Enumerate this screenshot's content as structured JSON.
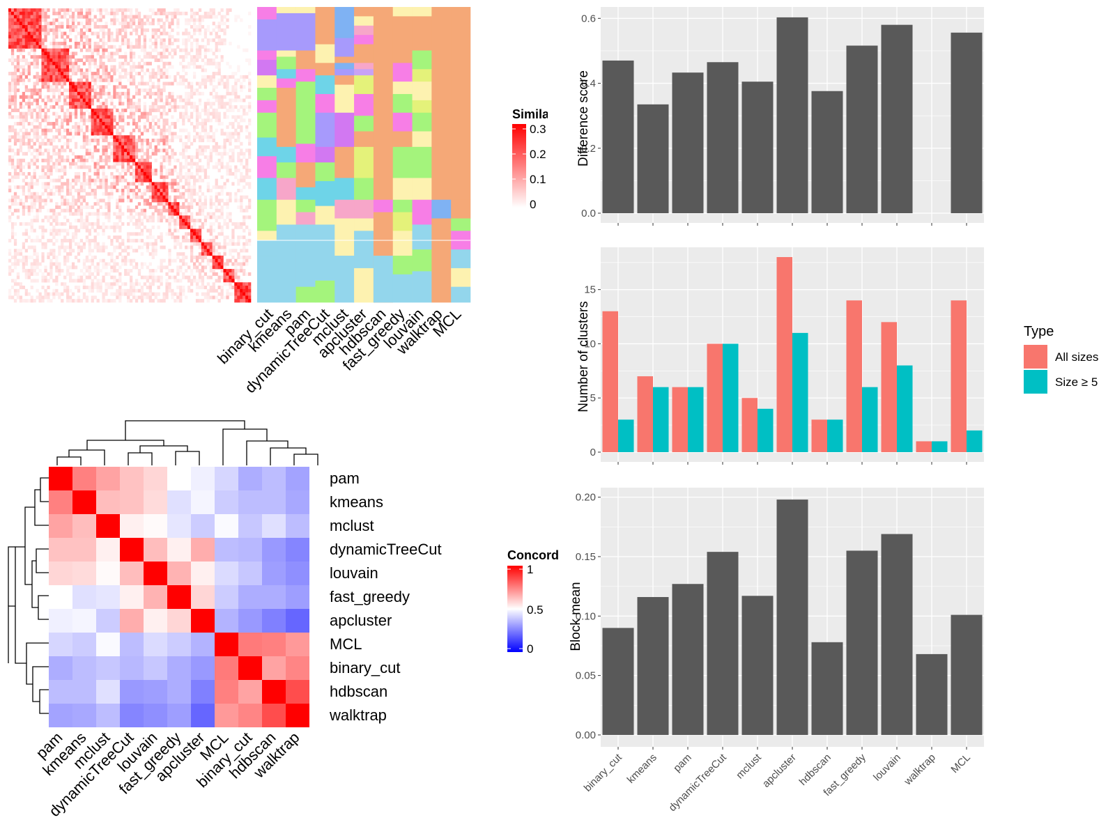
{
  "similarity_legend": {
    "title": "Simila",
    "ticks": [
      "0.3",
      "0.2",
      "0.1",
      "0"
    ],
    "colors": [
      "#ffffff",
      "#ff0000"
    ]
  },
  "concordance_legend": {
    "title": "Concord",
    "ticks": [
      "1",
      "0.5",
      "0"
    ],
    "colors": [
      "#0000ff",
      "#ffffff",
      "#ff0000"
    ]
  },
  "method_columns": {
    "labels": [
      "binary_cut",
      "kmeans",
      "pam",
      "dynamicTreeCut",
      "mclust",
      "apcluster",
      "hdbscan",
      "fast_greedy",
      "louvain",
      "walktrap",
      "MCL"
    ]
  },
  "bar_legend": {
    "title": "Type",
    "items": [
      {
        "label": "All sizes",
        "color": "#f8766d"
      },
      {
        "label": "Size ≥ 5",
        "color": "#00bfc4"
      }
    ]
  },
  "chart_data": [
    {
      "type": "heatmap",
      "name": "similarity_matrix",
      "colors": [
        "#ffffff",
        "#ff0000"
      ],
      "range": [
        0,
        0.3
      ]
    },
    {
      "type": "heatmap",
      "name": "cluster_assignments",
      "columns": [
        "binary_cut",
        "kmeans",
        "pam",
        "dynamicTreeCut",
        "mclust",
        "apcluster",
        "hdbscan",
        "fast_greedy",
        "louvain",
        "walktrap",
        "MCL"
      ]
    },
    {
      "type": "heatmap",
      "name": "concordance",
      "rows": [
        "pam",
        "kmeans",
        "mclust",
        "dynamicTreeCut",
        "louvain",
        "fast_greedy",
        "apcluster",
        "MCL",
        "binary_cut",
        "hdbscan",
        "walktrap"
      ],
      "columns": [
        "pam",
        "kmeans",
        "mclust",
        "dynamicTreeCut",
        "louvain",
        "fast_greedy",
        "apcluster",
        "MCL",
        "binary_cut",
        "hdbscan",
        "walktrap"
      ],
      "range": [
        0,
        1
      ],
      "values": [
        [
          1.0,
          0.75,
          0.68,
          0.62,
          0.58,
          0.5,
          0.47,
          0.42,
          0.34,
          0.37,
          0.32
        ],
        [
          0.75,
          1.0,
          0.63,
          0.62,
          0.57,
          0.44,
          0.48,
          0.4,
          0.37,
          0.37,
          0.33
        ],
        [
          0.68,
          0.63,
          1.0,
          0.53,
          0.51,
          0.45,
          0.4,
          0.49,
          0.39,
          0.44,
          0.37
        ],
        [
          0.62,
          0.62,
          0.53,
          1.0,
          0.63,
          0.53,
          0.66,
          0.37,
          0.36,
          0.3,
          0.26
        ],
        [
          0.58,
          0.57,
          0.51,
          0.63,
          1.0,
          0.65,
          0.53,
          0.43,
          0.39,
          0.31,
          0.28
        ],
        [
          0.5,
          0.44,
          0.45,
          0.53,
          0.65,
          1.0,
          0.58,
          0.4,
          0.34,
          0.34,
          0.31
        ],
        [
          0.47,
          0.48,
          0.4,
          0.66,
          0.53,
          0.58,
          1.0,
          0.35,
          0.3,
          0.25,
          0.2
        ],
        [
          0.42,
          0.4,
          0.49,
          0.37,
          0.43,
          0.4,
          0.35,
          1.0,
          0.76,
          0.75,
          0.7
        ],
        [
          0.34,
          0.37,
          0.39,
          0.36,
          0.39,
          0.34,
          0.3,
          0.76,
          1.0,
          0.68,
          0.74
        ],
        [
          0.37,
          0.37,
          0.44,
          0.3,
          0.31,
          0.34,
          0.25,
          0.75,
          0.68,
          1.0,
          0.85
        ],
        [
          0.32,
          0.33,
          0.37,
          0.26,
          0.28,
          0.31,
          0.2,
          0.7,
          0.74,
          0.85,
          1.0
        ]
      ]
    },
    {
      "type": "bar",
      "name": "difference_score",
      "categories": [
        "binary_cut",
        "kmeans",
        "pam",
        "dynamicTreeCut",
        "mclust",
        "apcluster",
        "hdbscan",
        "fast_greedy",
        "louvain",
        "walktrap",
        "MCL"
      ],
      "values": [
        0.47,
        0.335,
        0.433,
        0.465,
        0.405,
        0.603,
        0.376,
        0.516,
        0.58,
        null,
        0.556
      ],
      "ylabel": "Difference score",
      "yticks": [
        "0.0",
        "0.2",
        "0.4",
        "0.6"
      ],
      "ylim": [
        -0.03,
        0.635
      ],
      "color": "#595959"
    },
    {
      "type": "bar",
      "name": "number_of_clusters",
      "categories": [
        "binary_cut",
        "kmeans",
        "pam",
        "dynamicTreeCut",
        "mclust",
        "apcluster",
        "hdbscan",
        "fast_greedy",
        "louvain",
        "walktrap",
        "MCL"
      ],
      "series": [
        {
          "name": "All sizes",
          "values": [
            13,
            7,
            6,
            10,
            5,
            18,
            3,
            14,
            12,
            1,
            14
          ],
          "color": "#f8766d"
        },
        {
          "name": "Size ≥ 5",
          "values": [
            3,
            6,
            6,
            10,
            4,
            11,
            3,
            6,
            8,
            1,
            2
          ],
          "color": "#00bfc4"
        }
      ],
      "ylabel": "Number of clusters",
      "yticks": [
        "0",
        "5",
        "10",
        "15"
      ],
      "ylim": [
        -0.9,
        18.9
      ]
    },
    {
      "type": "bar",
      "name": "block_mean",
      "categories": [
        "binary_cut",
        "kmeans",
        "pam",
        "dynamicTreeCut",
        "mclust",
        "apcluster",
        "hdbscan",
        "fast_greedy",
        "louvain",
        "walktrap",
        "MCL"
      ],
      "values": [
        0.09,
        0.116,
        0.127,
        0.154,
        0.117,
        0.198,
        0.078,
        0.155,
        0.169,
        0.068,
        0.101
      ],
      "ylabel": "Block mean",
      "yticks": [
        "0.00",
        "0.05",
        "0.10",
        "0.15",
        "0.20"
      ],
      "ylim": [
        -0.01,
        0.208
      ],
      "color": "#595959"
    }
  ]
}
